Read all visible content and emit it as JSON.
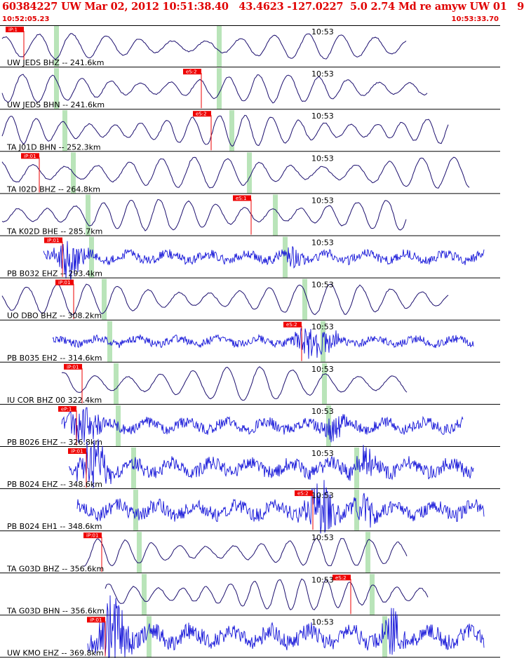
{
  "header": {
    "title": "60384227 UW Mar 02, 2012 10:51:38.40   43.4623 -127.0227  5.0 2.74 Md re amyw UW 01   9",
    "start_time": "10:52:05.23",
    "end_time": "10:53:33.70"
  },
  "colors": {
    "header_text": "#e00000",
    "trace_dark": "#1c0f6e",
    "trace_blue": "#1414d8",
    "pick_flag": "#ee0000",
    "window_marker": "#b9e4b9",
    "separator": "#000000"
  },
  "chart_data": {
    "type": "line",
    "title": "",
    "x_unit": "time",
    "x_range": [
      "10:52:05.23",
      "10:53:33.70"
    ],
    "time_tick": "10:53",
    "traces": [
      {
        "label": "UW JEDS BHZ -- 241.6km",
        "pick": "iP:1",
        "color": "dark"
      },
      {
        "label": "UW JEDS BHN -- 241.6km",
        "pick": "eS:2",
        "color": "dark"
      },
      {
        "label": "TA J01D BHN -- 252.3km",
        "pick": "eS:2",
        "color": "dark"
      },
      {
        "label": "TA I02D BHZ -- 264.8km",
        "pick": "iP:01",
        "color": "dark"
      },
      {
        "label": "TA K02D BHE -- 285.7km",
        "pick": "eS:1",
        "color": "dark"
      },
      {
        "label": "PB B032 EHZ -- 293.4km",
        "pick": "iP:01",
        "color": "blue"
      },
      {
        "label": "UO DBO BHZ -- 308.2km",
        "pick": "iP:01",
        "color": "dark"
      },
      {
        "label": "PB B035 EH2 -- 314.6km",
        "pick": "eS:2",
        "color": "blue"
      },
      {
        "label": "IU COR BHZ 00 322.4km",
        "pick": "iP:01",
        "color": "dark"
      },
      {
        "label": "PB B026 EHZ -- 326.8km",
        "pick": "eP:1",
        "color": "blue"
      },
      {
        "label": "PB B024 EHZ -- 348.6km",
        "pick": "iP:01",
        "color": "blue"
      },
      {
        "label": "PB B024 EH1 -- 348.6km",
        "pick": "eS:2",
        "color": "blue"
      },
      {
        "label": "TA G03D BHZ -- 356.6km",
        "pick": "iP:01",
        "color": "dark"
      },
      {
        "label": "TA G03D BHN -- 356.6km",
        "pick": "eS:2",
        "color": "dark"
      },
      {
        "label": "UW KMO EHZ -- 369.8km",
        "pick": "iP:01",
        "color": "blue"
      }
    ]
  }
}
